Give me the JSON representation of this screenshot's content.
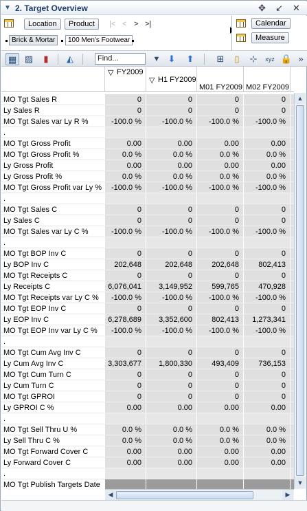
{
  "window": {
    "title": "2. Target Overview"
  },
  "dimensions": {
    "location_label": "Location",
    "product_label": "Product",
    "calendar_label": "Calendar",
    "measure_label": "Measure",
    "breadcrumbs": [
      "Brick & Mortar",
      "100 Men's Footwear"
    ]
  },
  "toolbar": {
    "find_placeholder": "Find..."
  },
  "grid": {
    "columns": [
      {
        "label": "FY2009",
        "expander": "▽"
      },
      {
        "label": "H1 FY2009",
        "expander": "▽"
      },
      {
        "label": "M01 FY2009",
        "expander": ""
      },
      {
        "label": "M02 FY2009",
        "expander": ""
      }
    ],
    "rows": [
      {
        "label": "MO Tgt Sales R",
        "values": [
          "0",
          "0",
          "0",
          "0"
        ]
      },
      {
        "label": "Ly Sales R",
        "values": [
          "0",
          "0",
          "0",
          "0"
        ]
      },
      {
        "label": "MO Tgt Sales var Ly R %",
        "values": [
          "-100.0 %",
          "-100.0 %",
          "-100.0 %",
          "-100.0 %"
        ]
      },
      {
        "label": ".",
        "values": [
          "",
          "",
          "",
          ""
        ],
        "blank": true
      },
      {
        "label": "MO Tgt Gross Profit",
        "values": [
          "0.00",
          "0.00",
          "0.00",
          "0.00"
        ]
      },
      {
        "label": "MO Tgt Gross Profit %",
        "values": [
          "0.0 %",
          "0.0 %",
          "0.0 %",
          "0.0 %"
        ]
      },
      {
        "label": "Ly Gross Profit",
        "values": [
          "0.00",
          "0.00",
          "0.00",
          "0.00"
        ]
      },
      {
        "label": "Ly Gross Profit %",
        "values": [
          "0.0 %",
          "0.0 %",
          "0.0 %",
          "0.0 %"
        ]
      },
      {
        "label": "MO Tgt Gross Profit var Ly %",
        "values": [
          "-100.0 %",
          "-100.0 %",
          "-100.0 %",
          "-100.0 %"
        ]
      },
      {
        "label": ".",
        "values": [
          "",
          "",
          "",
          ""
        ],
        "blank": true
      },
      {
        "label": "MO Tgt Sales C",
        "values": [
          "0",
          "0",
          "0",
          "0"
        ]
      },
      {
        "label": "Ly Sales C",
        "values": [
          "0",
          "0",
          "0",
          "0"
        ]
      },
      {
        "label": "MO Tgt Sales var Ly C %",
        "values": [
          "-100.0 %",
          "-100.0 %",
          "-100.0 %",
          "-100.0 %"
        ]
      },
      {
        "label": ".",
        "values": [
          "",
          "",
          "",
          ""
        ],
        "blank": true
      },
      {
        "label": "MO Tgt BOP Inv C",
        "values": [
          "0",
          "0",
          "0",
          "0"
        ]
      },
      {
        "label": "Ly BOP Inv C",
        "values": [
          "202,648",
          "202,648",
          "202,648",
          "802,413"
        ]
      },
      {
        "label": "MO Tgt Receipts C",
        "values": [
          "0",
          "0",
          "0",
          "0"
        ]
      },
      {
        "label": "Ly Receipts C",
        "values": [
          "6,076,041",
          "3,149,952",
          "599,765",
          "470,928"
        ]
      },
      {
        "label": "MO Tgt Receipts var Ly C %",
        "values": [
          "-100.0 %",
          "-100.0 %",
          "-100.0 %",
          "-100.0 %"
        ]
      },
      {
        "label": "MO Tgt EOP Inv C",
        "values": [
          "0",
          "0",
          "0",
          "0"
        ]
      },
      {
        "label": "Ly EOP Inv C",
        "values": [
          "6,278,689",
          "3,352,600",
          "802,413",
          "1,273,341"
        ]
      },
      {
        "label": "MO Tgt EOP Inv var Ly C %",
        "values": [
          "-100.0 %",
          "-100.0 %",
          "-100.0 %",
          "-100.0 %"
        ]
      },
      {
        "label": ".",
        "values": [
          "",
          "",
          "",
          ""
        ],
        "blank": true
      },
      {
        "label": "MO Tgt Cum Avg Inv C",
        "values": [
          "0",
          "0",
          "0",
          "0"
        ]
      },
      {
        "label": "Ly Cum Avg Inv C",
        "values": [
          "3,303,677",
          "1,800,330",
          "493,409",
          "736,153"
        ]
      },
      {
        "label": "MO Tgt Cum Turn C",
        "values": [
          "0",
          "0",
          "0",
          "0"
        ]
      },
      {
        "label": "Ly Cum Turn C",
        "values": [
          "0",
          "0",
          "0",
          "0"
        ]
      },
      {
        "label": "MO Tgt GPROI",
        "values": [
          "0",
          "0",
          "0",
          "0"
        ]
      },
      {
        "label": "Ly GPROI C %",
        "values": [
          "0.00",
          "0.00",
          "0.00",
          "0.00"
        ]
      },
      {
        "label": ".",
        "values": [
          "",
          "",
          "",
          ""
        ],
        "blank": true
      },
      {
        "label": "MO Tgt Sell Thru U %",
        "values": [
          "0.0 %",
          "0.0 %",
          "0.0 %",
          "0.0 %"
        ]
      },
      {
        "label": "Ly Sell Thru C %",
        "values": [
          "0.0 %",
          "0.0 %",
          "0.0 %",
          "0.0 %"
        ]
      },
      {
        "label": "MO Tgt Forward Cover C",
        "values": [
          "0.00",
          "0.00",
          "0.00",
          "0.00"
        ]
      },
      {
        "label": "Ly Forward Cover C",
        "values": [
          "0.00",
          "0.00",
          "0.00",
          "0.00"
        ]
      },
      {
        "label": ".",
        "values": [
          "",
          "",
          "",
          ""
        ],
        "blank": true
      },
      {
        "label": "MO Tgt Publish Targets Date",
        "values": [
          "",
          "",
          "",
          ""
        ],
        "last": true
      }
    ]
  }
}
